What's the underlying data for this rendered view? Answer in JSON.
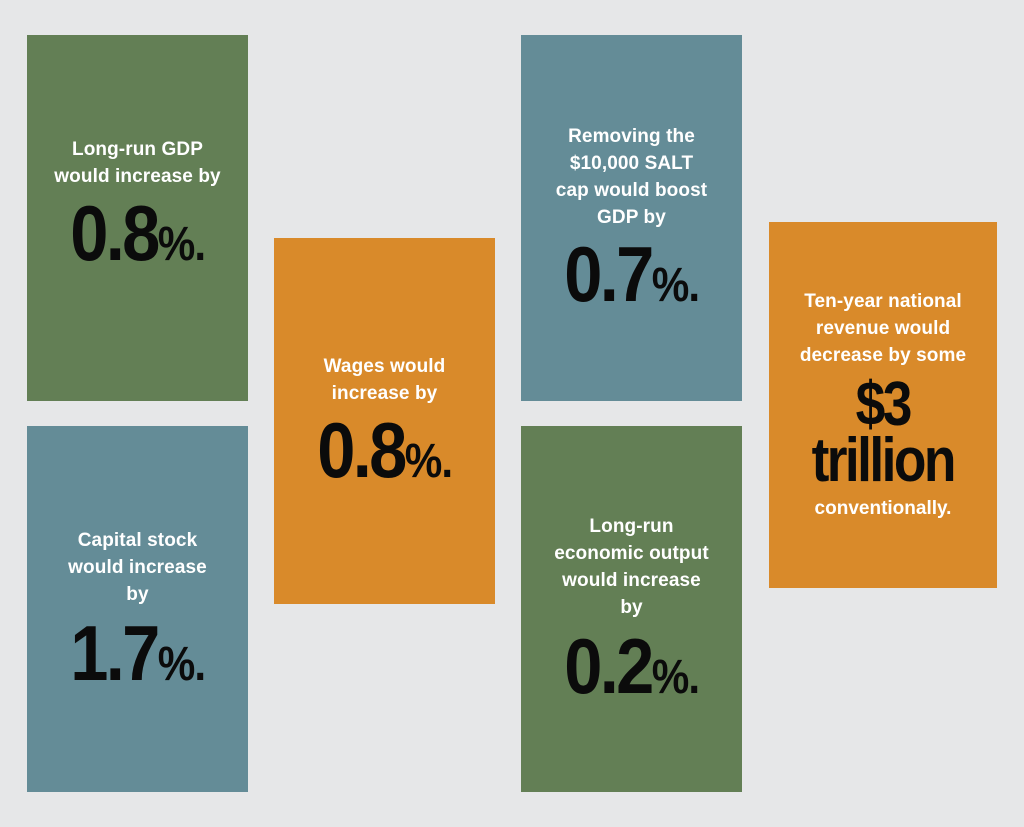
{
  "cards": [
    {
      "label_lines": [
        "Long-run GDP",
        "would increase by"
      ],
      "value": "0.8",
      "unit": "%.",
      "color": "#637f55"
    },
    {
      "label_lines": [
        "Wages would",
        "increase by"
      ],
      "value": "0.8",
      "unit": "%.",
      "color": "#d98a2a"
    },
    {
      "label_lines": [
        "Removing the",
        "$10,000 SALT",
        "cap would boost",
        "GDP by"
      ],
      "value": "0.7",
      "unit": "%.",
      "color": "#648c97"
    },
    {
      "label_lines": [
        "Ten-year national",
        "revenue would",
        "decrease by some"
      ],
      "value_lines": [
        "$3",
        "trillion"
      ],
      "suffix": "conventionally.",
      "color": "#d98a2a"
    },
    {
      "label_lines": [
        "Capital stock",
        "would increase",
        "by"
      ],
      "value": "1.7",
      "unit": "%.",
      "color": "#648c97"
    },
    {
      "label_lines": [
        "Long-run",
        "economic output",
        "would increase",
        "by"
      ],
      "value": "0.2",
      "unit": "%.",
      "color": "#637f55"
    }
  ]
}
